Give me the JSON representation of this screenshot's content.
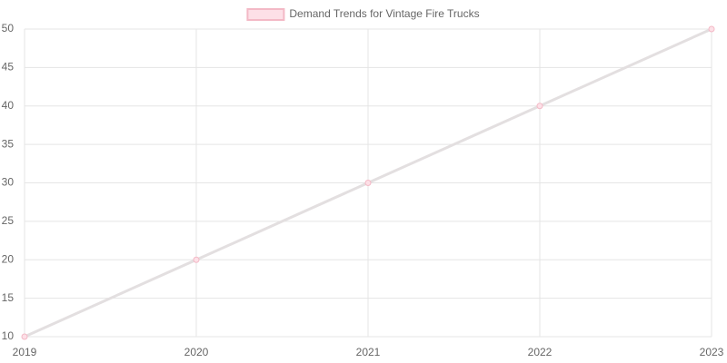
{
  "chart_data": {
    "type": "line",
    "categories": [
      "2019",
      "2020",
      "2021",
      "2022",
      "2023"
    ],
    "series": [
      {
        "name": "Demand Trends for Vintage Fire Trucks",
        "color": "#e3dfe0",
        "point_color": "#f3b9c6",
        "legend_fill": "#fde0e7",
        "values": [
          10,
          20,
          30,
          40,
          50
        ]
      }
    ],
    "ylim": [
      10,
      50
    ],
    "yticks": [
      10,
      15,
      20,
      25,
      30,
      35,
      40,
      45,
      50
    ],
    "grid": true,
    "legend": "top"
  }
}
